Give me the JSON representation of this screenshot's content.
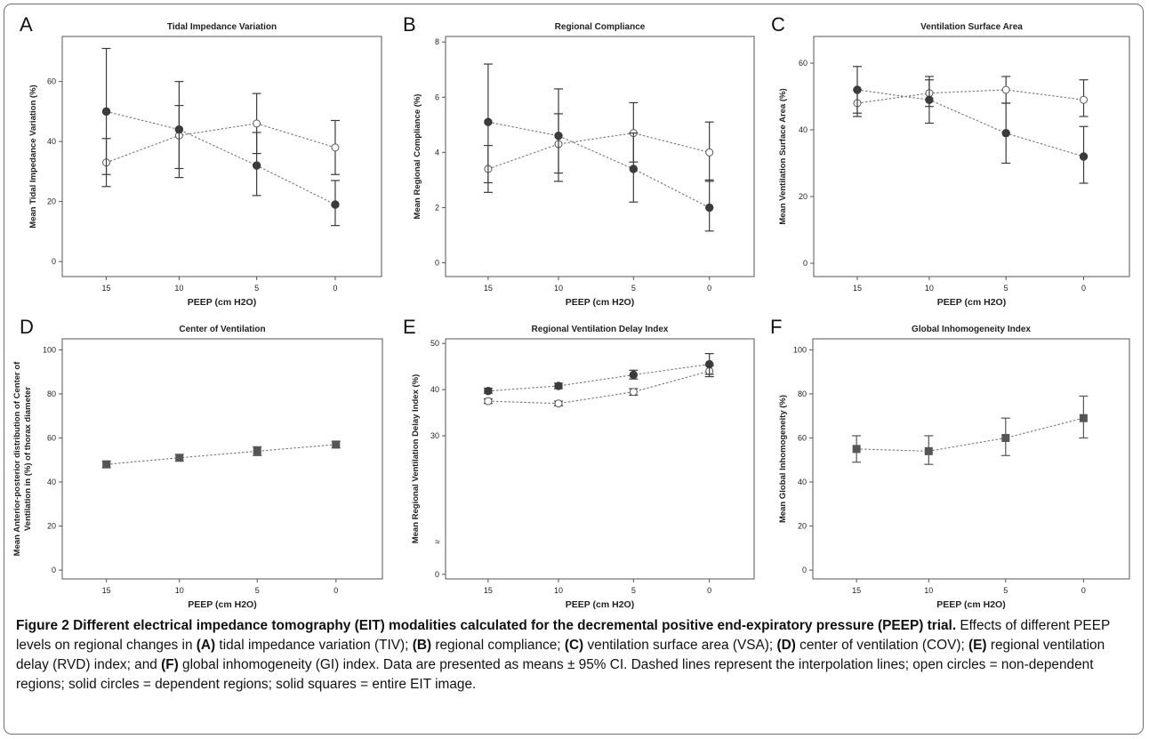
{
  "style": {
    "dependent_color": "#3b3b3b",
    "open_fill": "#ffffff",
    "square_color": "#555555",
    "line_color": "#777777"
  },
  "chart_data": [
    {
      "type": "line",
      "panel": "A",
      "title": "Tidal Impedance Variation",
      "xlabel": "PEEP (cm H2O)",
      "ylabel": "Mean Tidal Impedance Variation (%)",
      "categories": [
        "15",
        "10",
        "5",
        "0"
      ],
      "ylim": [
        -5,
        75
      ],
      "yticks": [
        0,
        20,
        40,
        60
      ],
      "series": [
        {
          "marker": "open-circle",
          "values": [
            33,
            42,
            46,
            38
          ],
          "ci_low": [
            25,
            31,
            36,
            29
          ],
          "ci_high": [
            41,
            52,
            56,
            47
          ]
        },
        {
          "marker": "filled-circle",
          "values": [
            50,
            44,
            32,
            19
          ],
          "ci_low": [
            29,
            28,
            22,
            12
          ],
          "ci_high": [
            71,
            60,
            43,
            27
          ]
        }
      ]
    },
    {
      "type": "line",
      "panel": "B",
      "title": "Regional Compliance",
      "xlabel": "PEEP (cm H2O)",
      "ylabel": "Mean Regional Compliance (%)",
      "categories": [
        "15",
        "10",
        "5",
        "0"
      ],
      "ylim": [
        -0.5,
        8.2
      ],
      "yticks": [
        0,
        2,
        4,
        6,
        8
      ],
      "series": [
        {
          "marker": "open-circle",
          "values": [
            3.4,
            4.3,
            4.7,
            4.0
          ],
          "ci_low": [
            2.55,
            3.25,
            3.65,
            2.95
          ],
          "ci_high": [
            4.25,
            5.4,
            5.8,
            5.1
          ]
        },
        {
          "marker": "filled-circle",
          "values": [
            5.1,
            4.6,
            3.4,
            2.0
          ],
          "ci_low": [
            2.9,
            2.95,
            2.2,
            1.15
          ],
          "ci_high": [
            7.2,
            6.3,
            4.7,
            3.0
          ]
        }
      ]
    },
    {
      "type": "line",
      "panel": "C",
      "title": "Ventilation Surface Area",
      "xlabel": "PEEP (cm H2O)",
      "ylabel": "Mean Ventilation Surface Area (%)",
      "categories": [
        "15",
        "10",
        "5",
        "0"
      ],
      "ylim": [
        -4,
        68
      ],
      "yticks": [
        0,
        20,
        40,
        60
      ],
      "series": [
        {
          "marker": "open-circle",
          "values": [
            48,
            51,
            52,
            49
          ],
          "ci_low": [
            44,
            47,
            48,
            44
          ],
          "ci_high": [
            52,
            55,
            56,
            55
          ]
        },
        {
          "marker": "filled-circle",
          "values": [
            52,
            49,
            39,
            32
          ],
          "ci_low": [
            45,
            42,
            30,
            24
          ],
          "ci_high": [
            59,
            56,
            48,
            41
          ]
        }
      ]
    },
    {
      "type": "line",
      "panel": "D",
      "title": "Center of Ventilation",
      "xlabel": "PEEP (cm H2O)",
      "ylabel": "Mean Anterior-posterior distribution of Center of Ventilation in (%) of thorax diameter",
      "categories": [
        "15",
        "10",
        "5",
        "0"
      ],
      "ylim": [
        -4,
        105
      ],
      "yticks": [
        0,
        20,
        40,
        60,
        80,
        100
      ],
      "series": [
        {
          "marker": "filled-square",
          "values": [
            48,
            51,
            54,
            57
          ],
          "ci_low": [
            46.5,
            49.5,
            52,
            55.5
          ],
          "ci_high": [
            49.5,
            52.5,
            56,
            58.5
          ]
        }
      ]
    },
    {
      "type": "line",
      "panel": "E",
      "title": "Regional Ventilation Delay Index",
      "xlabel": "PEEP (cm H2O)",
      "ylabel": "Mean Regional Ventilation Delay Index (%)",
      "categories": [
        "15",
        "10",
        "5",
        "0"
      ],
      "ylim": [
        -1,
        51
      ],
      "yticks": [
        0,
        30,
        40,
        50
      ],
      "axis_break": true,
      "series": [
        {
          "marker": "open-circle",
          "values": [
            37.5,
            37.0,
            39.5,
            44.0
          ],
          "ci_low": [
            37.0,
            36.5,
            38.8,
            42.8
          ],
          "ci_high": [
            38.0,
            37.5,
            40.2,
            45.2
          ]
        },
        {
          "marker": "filled-circle",
          "values": [
            39.7,
            40.8,
            43.2,
            45.5
          ],
          "ci_low": [
            39.2,
            40.2,
            42.3,
            43.3
          ],
          "ci_high": [
            40.3,
            41.4,
            44.2,
            47.8
          ]
        }
      ]
    },
    {
      "type": "line",
      "panel": "F",
      "title": "Global Inhomogeneity Index",
      "xlabel": "PEEP (cm H2O)",
      "ylabel": "Mean Global Inhomogeneity (%)",
      "categories": [
        "15",
        "10",
        "5",
        "0"
      ],
      "ylim": [
        -4,
        105
      ],
      "yticks": [
        0,
        20,
        40,
        60,
        80,
        100
      ],
      "series": [
        {
          "marker": "filled-square",
          "values": [
            55,
            54,
            60,
            69
          ],
          "ci_low": [
            49,
            48,
            52,
            60
          ],
          "ci_high": [
            61,
            61,
            69,
            79
          ]
        }
      ]
    }
  ],
  "caption": {
    "title": "Figure 2 Different electrical impedance tomography (EIT) modalities calculated for the decremental positive end-expiratory pressure (PEEP) trial.",
    "s1": " Effects of different PEEP levels on regional changes in ",
    "la": "(A)",
    "s2": " tidal impedance variation (TIV); ",
    "lb": "(B)",
    "s3": " regional compliance; ",
    "lc": "(C)",
    "s4": " ventilation surface area (VSA); ",
    "ld": "(D)",
    "s5": " center of ventilation (COV); ",
    "le": "(E)",
    "s6": " regional ventilation delay (RVD) index; and ",
    "lf": "(F)",
    "s7": " global inhomogeneity (GI) index. Data are presented as means ± 95% CI. Dashed lines represent the interpolation lines; open circles = non-dependent regions; solid circles = dependent regions; solid squares = entire EIT image."
  }
}
